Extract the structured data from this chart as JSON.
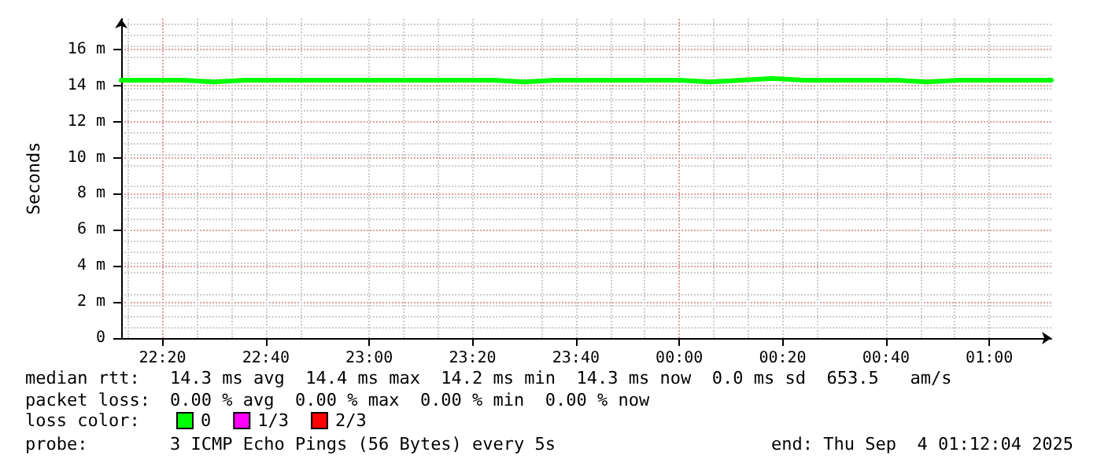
{
  "chart_data": {
    "type": "line",
    "ylabel": "Seconds",
    "x": [
      "2025-09-03T22:12",
      "2025-09-03T22:18",
      "2025-09-03T22:24",
      "2025-09-03T22:30",
      "2025-09-03T22:36",
      "2025-09-03T22:42",
      "2025-09-03T22:48",
      "2025-09-03T22:54",
      "2025-09-03T23:00",
      "2025-09-03T23:06",
      "2025-09-03T23:12",
      "2025-09-03T23:18",
      "2025-09-03T23:24",
      "2025-09-03T23:30",
      "2025-09-03T23:36",
      "2025-09-03T23:42",
      "2025-09-03T23:48",
      "2025-09-03T23:54",
      "2025-09-04T00:00",
      "2025-09-04T00:06",
      "2025-09-04T00:12",
      "2025-09-04T00:18",
      "2025-09-04T00:24",
      "2025-09-04T00:30",
      "2025-09-04T00:36",
      "2025-09-04T00:42",
      "2025-09-04T00:48",
      "2025-09-04T00:54",
      "2025-09-04T01:00",
      "2025-09-04T01:06",
      "2025-09-04T01:12"
    ],
    "series": [
      {
        "name": "0",
        "color": "#00ff00",
        "values": [
          14.3,
          14.3,
          14.3,
          14.2,
          14.3,
          14.3,
          14.3,
          14.3,
          14.3,
          14.3,
          14.3,
          14.3,
          14.3,
          14.2,
          14.3,
          14.3,
          14.3,
          14.3,
          14.3,
          14.2,
          14.3,
          14.4,
          14.3,
          14.3,
          14.3,
          14.3,
          14.2,
          14.3,
          14.3,
          14.3,
          14.3
        ]
      },
      {
        "name": "1/3",
        "color": "#ff00ff",
        "values": [
          null,
          null,
          null,
          null,
          null,
          null,
          null,
          null,
          null,
          null,
          null,
          null,
          null,
          null,
          null,
          null,
          null,
          null,
          null,
          null,
          null,
          null,
          null,
          null,
          null,
          null,
          null,
          null,
          null,
          null,
          null
        ]
      },
      {
        "name": "2/3",
        "color": "#ff0000",
        "values": [
          null,
          null,
          null,
          null,
          null,
          null,
          null,
          null,
          null,
          null,
          null,
          null,
          null,
          null,
          null,
          null,
          null,
          null,
          null,
          null,
          null,
          null,
          null,
          null,
          null,
          null,
          null,
          null,
          null,
          null,
          null
        ]
      }
    ],
    "xlim": [
      "2025-09-03T22:12",
      "2025-09-04T01:12"
    ],
    "xticks": [
      {
        "value": "2025-09-03T22:20",
        "label": "22:20"
      },
      {
        "value": "2025-09-03T22:40",
        "label": "22:40"
      },
      {
        "value": "2025-09-03T23:00",
        "label": "23:00"
      },
      {
        "value": "2025-09-03T23:20",
        "label": "23:20"
      },
      {
        "value": "2025-09-03T23:40",
        "label": "23:40"
      },
      {
        "value": "2025-09-04T00:00",
        "label": "00:00"
      },
      {
        "value": "2025-09-04T00:20",
        "label": "00:20"
      },
      {
        "value": "2025-09-04T00:40",
        "label": "00:40"
      },
      {
        "value": "2025-09-04T01:00",
        "label": "01:00"
      }
    ],
    "ylim": [
      0,
      17.7
    ],
    "yticks": [
      0,
      {
        "value": 2,
        "label": "2 m"
      },
      {
        "value": 4,
        "label": "4 m"
      },
      {
        "value": 6,
        "label": "6 m"
      },
      {
        "value": 8,
        "label": "8 m"
      },
      {
        "value": 10,
        "label": "10 m"
      },
      {
        "value": 12,
        "label": "12 m"
      },
      {
        "value": 14,
        "label": "14 m"
      },
      {
        "value": 16,
        "label": "16 m"
      }
    ],
    "grid": true,
    "legend": "bottom",
    "marker": "none",
    "line_style": "solid",
    "annotations": [
      "median rtt:",
      "14.3 ms avg  14.4 ms max  14.2 ms min  14.3 ms now  0.0 ms sd  653.5   am/s",
      "packet loss:",
      "0.00 % avg  0.00 % max  0.00 % min  0.00 % now",
      "loss color:",
      "probe:",
      "3 ICMP Echo Pings (56 Bytes) every 5s",
      "end: Thu Sep  4 01:12:04 2025"
    ]
  }
}
